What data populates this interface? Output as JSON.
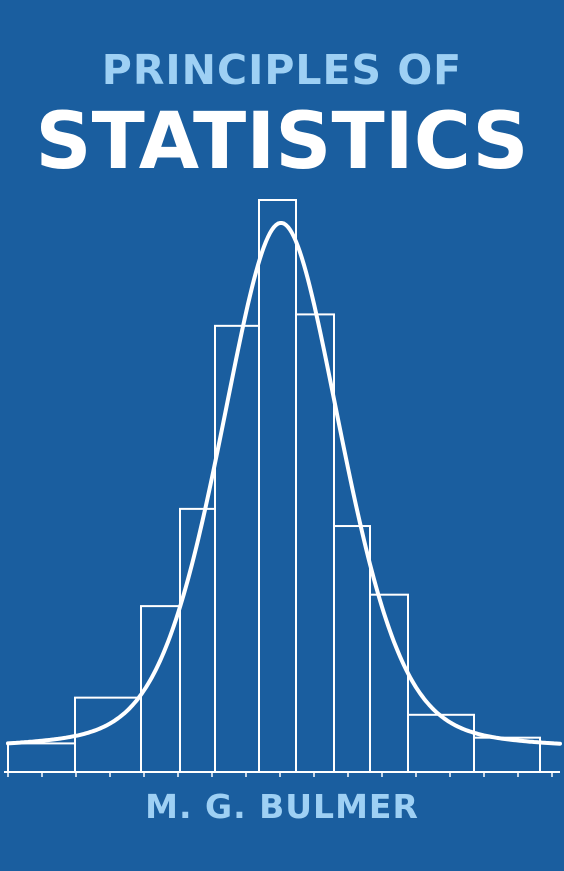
{
  "cover": {
    "title_line1": "PRINCIPLES OF",
    "title_line2": "STATISTICS",
    "author": "M. G. BULMER",
    "colors": {
      "background": "#1a5e9f",
      "title_accent": "#9ed0f4",
      "title_main": "#ffffff",
      "illustration": "#ffffff"
    }
  },
  "illustration": {
    "type": "histogram-with-normal-curve",
    "bar_heights_relative": [
      0.05,
      0.13,
      0.29,
      0.46,
      0.78,
      1.0,
      0.8,
      0.43,
      0.31,
      0.1,
      0.06,
      0.04
    ],
    "curve_peak_relative": 0.96
  }
}
